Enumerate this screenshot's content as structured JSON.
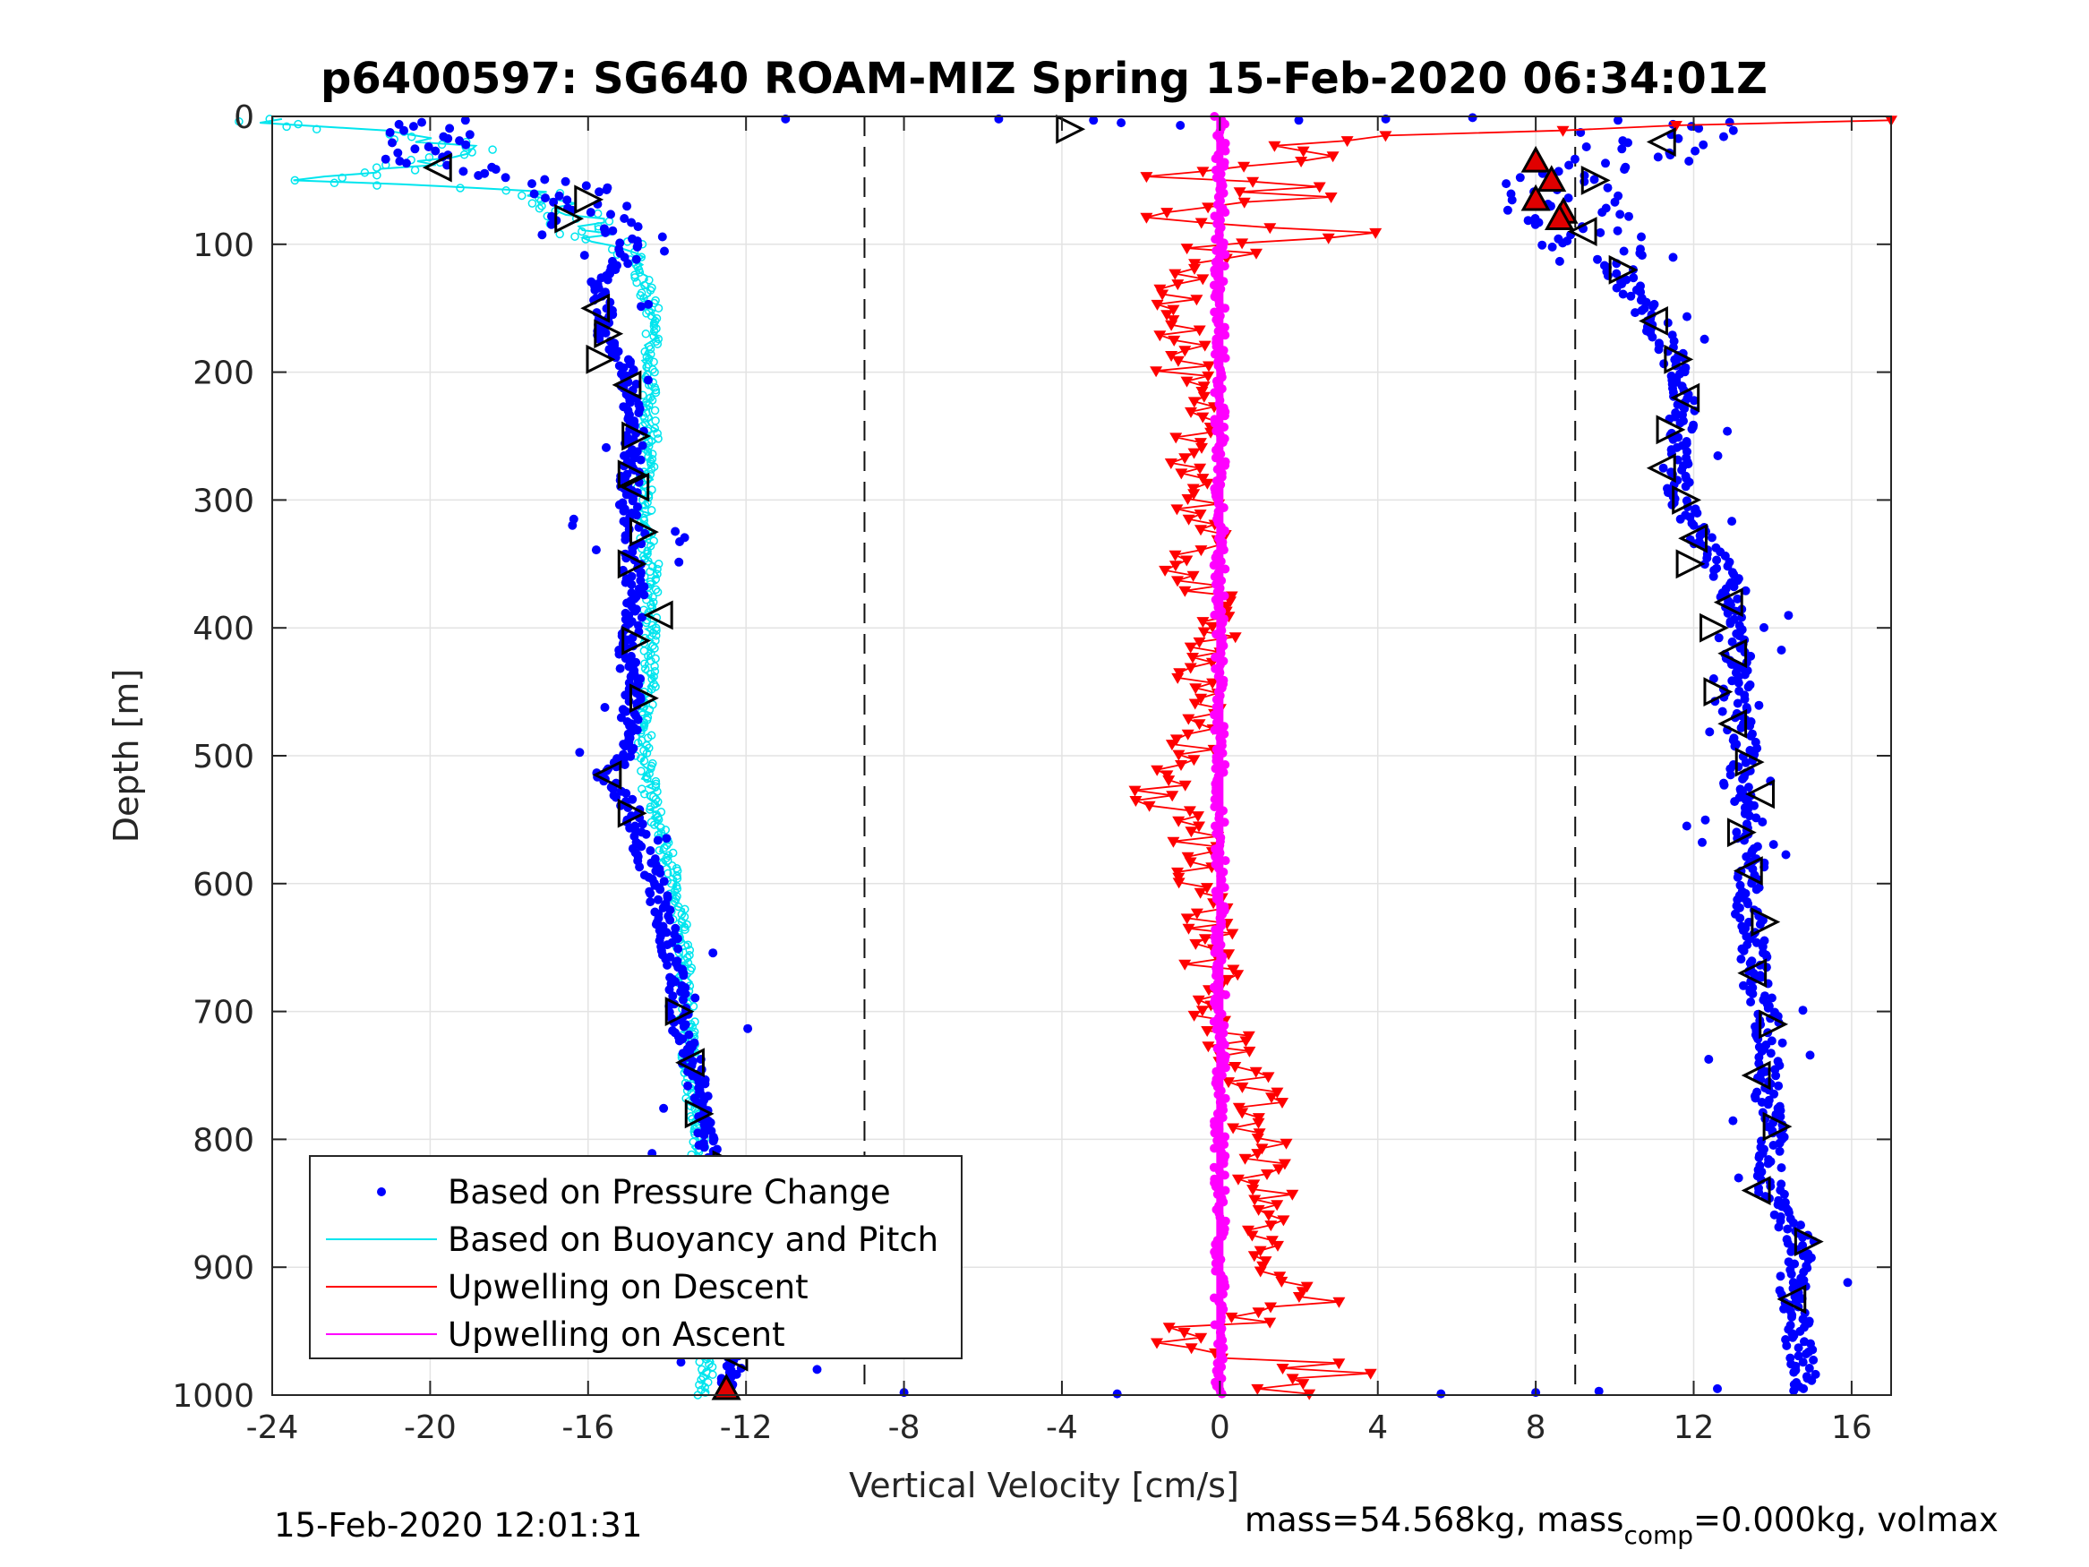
{
  "chart_data": {
    "type": "scatter",
    "title": "p6400597: SG640 ROAM-MIZ Spring 15-Feb-2020 06:34:01Z",
    "xlabel": "Vertical Velocity [cm/s]",
    "ylabel": "Depth [m]",
    "xlim": [
      -24,
      17
    ],
    "ylim": [
      0,
      1000
    ],
    "y_reversed": true,
    "xticks": [
      -24,
      -20,
      -16,
      -12,
      -8,
      -4,
      0,
      4,
      8,
      12,
      16
    ],
    "yticks": [
      0,
      100,
      200,
      300,
      400,
      500,
      600,
      700,
      800,
      900,
      1000
    ],
    "grid": true,
    "legend_position": "bottom-left",
    "reference_lines": [
      {
        "x": -9,
        "style": "dashed"
      },
      {
        "x": 9,
        "style": "dashed"
      }
    ],
    "series": [
      {
        "name": "Based on Pressure Change",
        "color": "#0000ff",
        "marker": "dot",
        "descent": {
          "depth": [
            5,
            10,
            20,
            35,
            50,
            65,
            80,
            95,
            110,
            130,
            150,
            175,
            200,
            225,
            250,
            275,
            300,
            325,
            350,
            375,
            400,
            425,
            450,
            475,
            500,
            515,
            540,
            575,
            600,
            625,
            650,
            675,
            700,
            725,
            750,
            775,
            800,
            825,
            850,
            875,
            900,
            925,
            950,
            975,
            995
          ],
          "velocity": [
            -19.5,
            -20.3,
            -19.8,
            -20.0,
            -17.0,
            -16.0,
            -16.2,
            -15.2,
            -15.0,
            -15.8,
            -15.6,
            -15.5,
            -15.0,
            -14.9,
            -14.8,
            -14.9,
            -15.0,
            -14.8,
            -14.9,
            -14.8,
            -14.9,
            -15.0,
            -14.8,
            -15.0,
            -15.0,
            -15.6,
            -14.9,
            -14.6,
            -14.3,
            -14.1,
            -13.9,
            -13.8,
            -13.7,
            -13.5,
            -13.3,
            -13.1,
            -13.0,
            -12.9,
            -12.8,
            -12.9,
            -12.8,
            -12.7,
            -12.5,
            -12.3,
            -12.5
          ]
        },
        "ascent": {
          "depth": [
            995,
            970,
            940,
            910,
            880,
            850,
            820,
            790,
            760,
            730,
            700,
            670,
            640,
            610,
            580,
            550,
            520,
            490,
            460,
            430,
            400,
            370,
            340,
            310,
            280,
            250,
            220,
            190,
            160,
            140,
            120,
            100,
            85,
            70,
            55,
            40,
            25,
            10
          ],
          "velocity": [
            14.8,
            14.7,
            14.6,
            14.5,
            14.7,
            14.0,
            13.9,
            14.0,
            13.8,
            14.0,
            13.8,
            13.5,
            13.6,
            13.3,
            13.5,
            13.4,
            13.0,
            13.3,
            13.0,
            13.2,
            12.9,
            13.0,
            12.4,
            11.8,
            11.5,
            11.6,
            11.8,
            11.5,
            11.0,
            10.5,
            10.0,
            9.6,
            9.0,
            8.8,
            8.5,
            9.2,
            10.8,
            11.5
          ]
        }
      },
      {
        "name": "Based on Buoyancy and Pitch",
        "color": "#00e5ee",
        "marker": "line",
        "descent": {
          "depth": [
            5,
            15,
            25,
            40,
            50,
            60,
            75,
            90,
            105,
            130,
            160,
            200,
            250,
            300,
            350,
            400,
            450,
            500,
            550,
            600,
            650,
            700,
            750,
            800,
            850,
            900,
            950,
            1000
          ],
          "velocity": [
            -24.0,
            -20.5,
            -19.2,
            -20.5,
            -23.0,
            -17.0,
            -16.4,
            -16.0,
            -14.8,
            -14.6,
            -14.3,
            -14.5,
            -14.4,
            -14.6,
            -14.4,
            -14.4,
            -14.5,
            -14.6,
            -14.3,
            -13.8,
            -13.6,
            -13.5,
            -13.4,
            -13.2,
            -13.3,
            -13.0,
            -12.9,
            -13.1
          ]
        }
      },
      {
        "name": "Upwelling on Descent",
        "color": "#ff0000",
        "marker": "triangle-down",
        "descent": {
          "depth": [
            3,
            15,
            30,
            45,
            60,
            75,
            90,
            110,
            130,
            160,
            200,
            240,
            280,
            320,
            360,
            400,
            440,
            480,
            510,
            530,
            560,
            600,
            650,
            700,
            750,
            800,
            850,
            900,
            930,
            960,
            980,
            1000
          ],
          "upwelling": [
            17.0,
            3.5,
            1.5,
            -1.0,
            2.0,
            -1.5,
            2.5,
            -0.5,
            -1.0,
            -0.8,
            -1.0,
            -0.7,
            -0.5,
            -0.5,
            -0.8,
            0.3,
            -0.8,
            -0.5,
            -1.0,
            -1.8,
            -0.6,
            -0.4,
            -0.2,
            -0.3,
            0.8,
            1.0,
            1.2,
            0.8,
            2.5,
            -1.5,
            3.0,
            0.6
          ]
        }
      },
      {
        "name": "Upwelling on Ascent",
        "color": "#ff00ff",
        "marker": "line",
        "ascent": {
          "depth": [
            0,
            1000
          ],
          "upwelling": [
            0,
            0
          ]
        }
      }
    ],
    "markers": {
      "open_triangles_descent": {
        "depth": [
          10,
          40,
          65,
          80,
          150,
          170,
          190,
          210,
          250,
          280,
          290,
          325,
          350,
          390,
          410,
          455,
          515,
          545,
          700,
          740,
          780,
          820,
          850,
          890,
          935,
          970
        ],
        "velocity": [
          -3.8,
          -19.8,
          -16.0,
          -16.5,
          -15.8,
          -15.5,
          -15.7,
          -15.0,
          -14.8,
          -14.9,
          -14.8,
          -14.6,
          -14.9,
          -14.2,
          -14.8,
          -14.6,
          -15.5,
          -14.9,
          -13.7,
          -13.4,
          -13.2,
          -12.5,
          -12.6,
          -13.0,
          -12.8,
          -12.3
        ]
      },
      "open_triangles_ascent": {
        "depth": [
          20,
          50,
          90,
          120,
          160,
          190,
          220,
          245,
          275,
          300,
          330,
          350,
          380,
          400,
          420,
          450,
          475,
          505,
          530,
          560,
          590,
          630,
          670,
          710,
          750,
          790,
          840,
          880,
          925
        ],
        "velocity": [
          11.2,
          9.5,
          9.2,
          10.2,
          11.0,
          11.6,
          11.8,
          11.4,
          11.2,
          11.8,
          12.0,
          11.9,
          12.9,
          12.5,
          13.0,
          12.6,
          13.0,
          13.4,
          13.7,
          13.2,
          13.4,
          13.8,
          13.5,
          14.0,
          13.6,
          14.1,
          13.6,
          14.9,
          14.5
        ]
      },
      "red_triangles": {
        "depth": [
          35,
          50,
          65,
          75,
          80,
          995
        ],
        "velocity": [
          8.0,
          8.4,
          8.0,
          8.7,
          8.6,
          -12.5
        ]
      }
    },
    "legend": [
      {
        "label": "Based on Pressure Change",
        "color": "#0000ff",
        "style": "dot"
      },
      {
        "label": "Based on Buoyancy and Pitch",
        "color": "#00e5ee",
        "style": "line"
      },
      {
        "label": "Upwelling on Descent",
        "color": "#ff0000",
        "style": "line"
      },
      {
        "label": "Upwelling on Ascent",
        "color": "#ff00ff",
        "style": "line"
      }
    ]
  },
  "footer": {
    "timestamp": "15-Feb-2020 12:01:31",
    "mass_text": "mass=54.568kg, mass",
    "mass_sub": "comp",
    "mass_rest": "=0.000kg, volmax"
  }
}
